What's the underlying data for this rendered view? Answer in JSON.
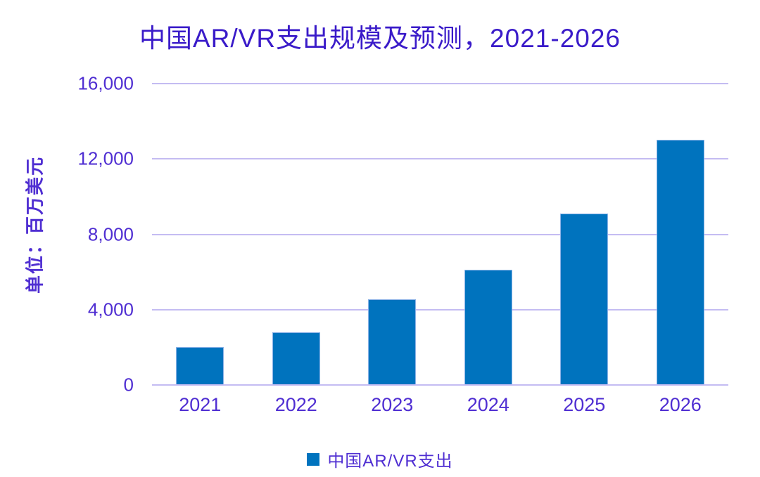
{
  "chart_data": {
    "type": "bar",
    "title": "中国AR/VR支出规模及预测，2021-2026",
    "ylabel": "单位：百万美元",
    "xlabel": "",
    "categories": [
      "2021",
      "2022",
      "2023",
      "2024",
      "2025",
      "2026"
    ],
    "series": [
      {
        "name": "中国AR/VR支出",
        "values": [
          2000,
          2800,
          4550,
          6100,
          9100,
          13000
        ]
      }
    ],
    "ylim": [
      0,
      16000
    ],
    "yticks": [
      0,
      4000,
      8000,
      12000,
      16000
    ],
    "ytick_labels": [
      "0",
      "4,000",
      "8,000",
      "12,000",
      "16,000"
    ],
    "grid": true,
    "legend_position": "bottom",
    "colors": {
      "bar": "#0073be",
      "title_text": "#3a1bc9",
      "axis_text": "#4f2ed2",
      "gridline": "#c4bcf2",
      "background": "#ffffff"
    }
  },
  "legend": {
    "label": "中国AR/VR支出"
  }
}
